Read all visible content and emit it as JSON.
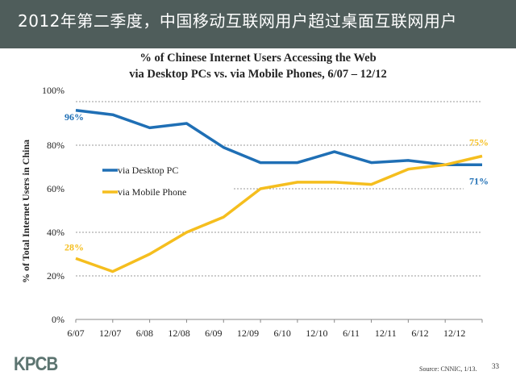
{
  "header": {
    "title": "2012年第二季度，中国移动互联网用户超过桌面互联网用户"
  },
  "footer": {
    "logo": "KPCB",
    "source": "Source: CNNIC, 1/13.",
    "page_number": "33"
  },
  "chart_data": {
    "type": "line",
    "title": "% of Chinese Internet Users Accessing the Web",
    "subtitle": "via Desktop PCs vs. via Mobile Phones, 6/07 – 12/12",
    "xlabel": "",
    "ylabel": "% of Total Internet Users in China",
    "categories": [
      "6/07",
      "12/07",
      "6/08",
      "12/08",
      "6/09",
      "12/09",
      "6/10",
      "12/10",
      "6/11",
      "12/11",
      "6/12",
      "12/12"
    ],
    "ylim": [
      0,
      100
    ],
    "yticks": [
      "0%",
      "20%",
      "40%",
      "60%",
      "80%",
      "100%"
    ],
    "grid": true,
    "legend": "center-left",
    "series": [
      {
        "name": "via Desktop PC",
        "color": "#1f6fb5",
        "values": [
          96,
          94,
          88,
          90,
          79,
          72,
          72,
          77,
          72,
          73,
          71,
          71
        ],
        "start_label": "96%",
        "end_label": "71%"
      },
      {
        "name": "via Mobile Phone",
        "color": "#f5be1e",
        "values": [
          28,
          22,
          30,
          40,
          47,
          60,
          63,
          63,
          62,
          69,
          71,
          75
        ],
        "start_label": "28%",
        "end_label": "75%"
      }
    ]
  }
}
